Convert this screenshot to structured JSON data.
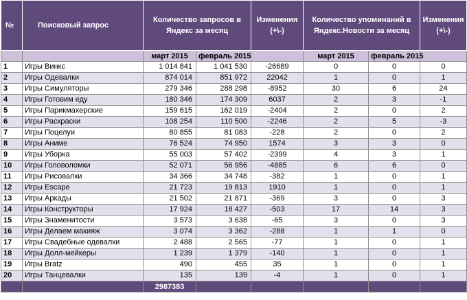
{
  "headers": {
    "num": "№",
    "query": "Поисковый запрос",
    "yandex_requests": "Количество запросов в Яндекс за месяц",
    "change1": "Изменения (+\\-)",
    "news_mentions": "Количество упоминаний в Яндекс.Новости за месяц",
    "change2": "Изменения (+\\-)"
  },
  "subheaders": {
    "mar1": "март 2015",
    "feb1": "февраль 2015",
    "mar2": "март 2015",
    "feb2": "февраль 2015"
  },
  "rows": [
    {
      "n": "1",
      "q": "Игры Винкс",
      "mar": "1 014 841",
      "feb": "1 041 530",
      "chg": "-26689",
      "nm": "0",
      "nf": "0",
      "nc": "0"
    },
    {
      "n": "2",
      "q": "Игры Одевалки",
      "mar": "874 014",
      "feb": "851 972",
      "chg": "22042",
      "nm": "1",
      "nf": "0",
      "nc": "1"
    },
    {
      "n": "3",
      "q": "Игры Симуляторы",
      "mar": "279 346",
      "feb": "288 298",
      "chg": "-8952",
      "nm": "30",
      "nf": "6",
      "nc": "24"
    },
    {
      "n": "4",
      "q": "Игры Готовим еду",
      "mar": "180 346",
      "feb": "174 309",
      "chg": "6037",
      "nm": "2",
      "nf": "3",
      "nc": "-1"
    },
    {
      "n": "5",
      "q": "Игры Парикмахерские",
      "mar": "159 615",
      "feb": "162 019",
      "chg": "-2404",
      "nm": "2",
      "nf": "0",
      "nc": "2"
    },
    {
      "n": "6",
      "q": "Игры Раскраски",
      "mar": "108 254",
      "feb": "110 500",
      "chg": "-2246",
      "nm": "2",
      "nf": "5",
      "nc": "-3"
    },
    {
      "n": "7",
      "q": "Игры Поцелуи",
      "mar": "80 855",
      "feb": "81 083",
      "chg": "-228",
      "nm": "2",
      "nf": "0",
      "nc": "2"
    },
    {
      "n": "8",
      "q": "Игры Аниме",
      "mar": "76 524",
      "feb": "74 950",
      "chg": "1574",
      "nm": "3",
      "nf": "3",
      "nc": "0"
    },
    {
      "n": "9",
      "q": "Игры Уборка",
      "mar": "55 003",
      "feb": "57 402",
      "chg": "-2399",
      "nm": "4",
      "nf": "3",
      "nc": "1"
    },
    {
      "n": "10",
      "q": "Игры Головоломки",
      "mar": "52 071",
      "feb": "56 956",
      "chg": "-4885",
      "nm": "6",
      "nf": "6",
      "nc": "0"
    },
    {
      "n": "11",
      "q": "Игры Рисовалки",
      "mar": "34 366",
      "feb": "34 748",
      "chg": "-382",
      "nm": "1",
      "nf": "0",
      "nc": "1"
    },
    {
      "n": "12",
      "q": "Игры Escape",
      "mar": "21 723",
      "feb": "19 813",
      "chg": "1910",
      "nm": "1",
      "nf": "0",
      "nc": "1"
    },
    {
      "n": "13",
      "q": "Игры Аркады",
      "mar": "21 502",
      "feb": "21 871",
      "chg": "-369",
      "nm": "3",
      "nf": "0",
      "nc": "3"
    },
    {
      "n": "14",
      "q": "Игры Конструкторы",
      "mar": "17 924",
      "feb": "18 427",
      "chg": "-503",
      "nm": "17",
      "nf": "14",
      "nc": "3"
    },
    {
      "n": "15",
      "q": "Игры Знаменитости",
      "mar": "3 573",
      "feb": "3 638",
      "chg": "-65",
      "nm": "3",
      "nf": "0",
      "nc": "3"
    },
    {
      "n": "16",
      "q": "Игры Делаем макияж",
      "mar": "3 074",
      "feb": "3 362",
      "chg": "-288",
      "nm": "1",
      "nf": "1",
      "nc": "0"
    },
    {
      "n": "17",
      "q": "Игры Свадебные одевалки",
      "mar": "2 488",
      "feb": "2 565",
      "chg": "-77",
      "nm": "1",
      "nf": "0",
      "nc": "1"
    },
    {
      "n": "18",
      "q": "Игры Долл-мейкеры",
      "mar": "1 239",
      "feb": "1 379",
      "chg": "-140",
      "nm": "1",
      "nf": "0",
      "nc": "1"
    },
    {
      "n": "19",
      "q": "Игры Bratz",
      "mar": "490",
      "feb": "455",
      "chg": "35",
      "nm": "1",
      "nf": "0",
      "nc": "1"
    },
    {
      "n": "20",
      "q": "Игры Танцевалки",
      "mar": "135",
      "feb": "139",
      "chg": "-4",
      "nm": "1",
      "nf": "0",
      "nc": "1"
    }
  ],
  "total": "2987383",
  "colors": {
    "header_bg": "#604a7b",
    "subheader_bg": "#ccc0da",
    "row_alt_bg": "#e4dfec"
  }
}
